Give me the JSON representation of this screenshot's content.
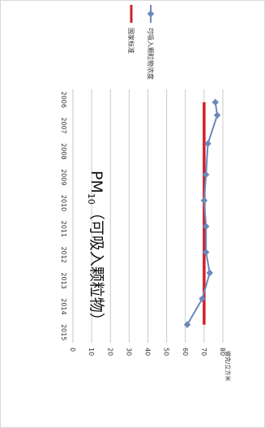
{
  "chart_data": {
    "type": "line",
    "title": {
      "main": "PM",
      "sub": "10",
      "rest": "（可吸入颗粒物）"
    },
    "ylabel": "微克/立方米",
    "x": [
      "2006",
      "2007",
      "2008",
      "2009",
      "2010",
      "2011",
      "2012",
      "2013",
      "2014",
      "2015"
    ],
    "ylim": [
      0,
      80
    ],
    "yticks": [
      "0",
      "10",
      "20",
      "30",
      "40",
      "50",
      "60",
      "70",
      "80"
    ],
    "grid": true,
    "legend_position": "right",
    "series": [
      {
        "name": "可吸入颗粒物浓度",
        "color": "#6b88bb",
        "marker": "diamond",
        "points": [
          {
            "x": 2006.1,
            "y": 76
          },
          {
            "x": 2006.6,
            "y": 77
          },
          {
            "x": 2007.7,
            "y": 72
          },
          {
            "x": 2008.9,
            "y": 71
          },
          {
            "x": 2009.9,
            "y": 70
          },
          {
            "x": 2010.9,
            "y": 71
          },
          {
            "x": 2011.9,
            "y": 71
          },
          {
            "x": 2012.7,
            "y": 73
          },
          {
            "x": 2013.7,
            "y": 69
          },
          {
            "x": 2014.7,
            "y": 61
          }
        ]
      },
      {
        "name": "国家标准",
        "color": "#d0202a",
        "points": [
          {
            "x": 2006.1,
            "y": 70
          },
          {
            "x": 2014.7,
            "y": 70
          }
        ]
      }
    ]
  }
}
